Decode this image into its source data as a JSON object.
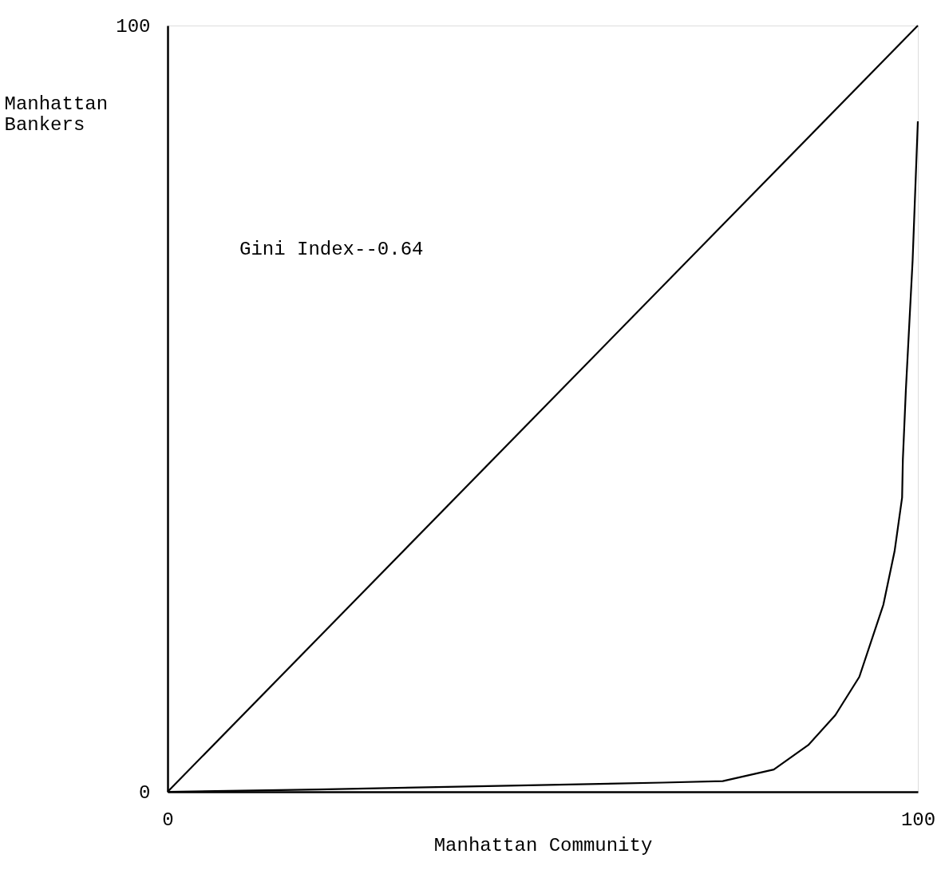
{
  "chart_data": {
    "type": "line",
    "xlabel": "Manhattan Community",
    "ylabel": "Manhattan Bankers",
    "annotations": [
      "Gini Index--0.64"
    ],
    "xlim": [
      0,
      100
    ],
    "ylim": [
      0,
      100
    ],
    "xticks": [
      0,
      100
    ],
    "yticks": [
      0,
      100
    ],
    "marker": "none",
    "line_style": "solid",
    "series": [
      {
        "color": "#000000",
        "x": [
          0,
          100
        ],
        "values": [
          0,
          100
        ]
      },
      {
        "color": "#000000",
        "x": [
          0,
          20,
          40,
          66,
          74,
          80.8,
          85.4,
          89,
          92.2,
          95.4,
          96.9,
          97.9,
          98,
          98.4,
          99.3,
          100
        ],
        "values": [
          0,
          0.3,
          0.7,
          1.2,
          1.4,
          2.9,
          6.1,
          10,
          15,
          24.4,
          31.4,
          38.4,
          43.3,
          52.4,
          69.3,
          87.5
        ]
      }
    ]
  }
}
